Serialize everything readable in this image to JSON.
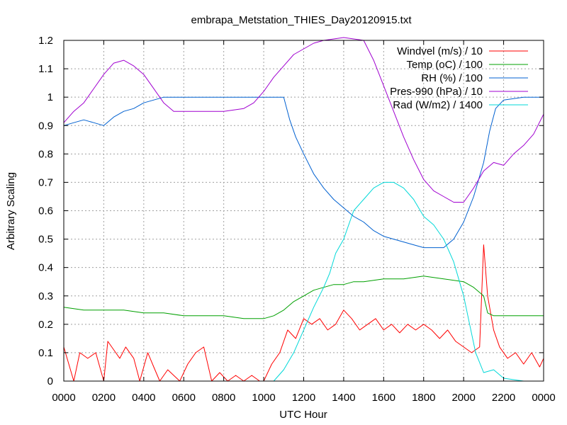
{
  "chart_data": {
    "type": "line",
    "title": "embrapa_Metstation_THIES_Day20120915.txt",
    "xlabel": "UTC Hour",
    "ylabel": "Arbitrary Scaling",
    "xlim": [
      0,
      24
    ],
    "ylim": [
      0,
      1.2
    ],
    "x_ticks": [
      "0000",
      "0200",
      "0400",
      "0600",
      "0800",
      "1000",
      "1200",
      "1400",
      "1600",
      "1800",
      "2000",
      "2200",
      "0000"
    ],
    "y_ticks": [
      "0",
      "0.1",
      "0.2",
      "0.3",
      "0.4",
      "0.5",
      "0.6",
      "0.7",
      "0.8",
      "0.9",
      "1",
      "1.1",
      "1.2"
    ],
    "grid": true,
    "legend_position": "top-right",
    "series": [
      {
        "name": "Windvel (m/s) / 10",
        "color": "#ff0000",
        "x": [
          0,
          0.5,
          0.8,
          1.2,
          1.6,
          2.0,
          2.2,
          2.5,
          2.8,
          3.1,
          3.5,
          3.8,
          4.2,
          4.5,
          4.8,
          5.2,
          5.8,
          6.2,
          6.6,
          7.0,
          7.4,
          7.8,
          8.2,
          8.6,
          9.0,
          9.4,
          9.8,
          10.0,
          10.4,
          10.8,
          11.2,
          11.6,
          12.0,
          12.4,
          12.8,
          13.2,
          13.6,
          14.0,
          14.4,
          14.8,
          15.2,
          15.6,
          16.0,
          16.4,
          16.8,
          17.2,
          17.6,
          18.0,
          18.4,
          18.8,
          19.2,
          19.6,
          20.0,
          20.4,
          20.8,
          21.0,
          21.2,
          21.5,
          21.8,
          22.2,
          22.6,
          23.0,
          23.4,
          23.8,
          24.0
        ],
        "values": [
          0.12,
          0.0,
          0.1,
          0.08,
          0.1,
          0.0,
          0.14,
          0.11,
          0.08,
          0.12,
          0.08,
          0.0,
          0.1,
          0.05,
          0.0,
          0.04,
          0.0,
          0.06,
          0.1,
          0.12,
          0.0,
          0.03,
          0.0,
          0.02,
          0.0,
          0.02,
          0.0,
          0.0,
          0.06,
          0.1,
          0.18,
          0.15,
          0.22,
          0.2,
          0.22,
          0.18,
          0.2,
          0.25,
          0.22,
          0.18,
          0.2,
          0.22,
          0.18,
          0.2,
          0.17,
          0.2,
          0.18,
          0.2,
          0.18,
          0.15,
          0.18,
          0.14,
          0.12,
          0.1,
          0.12,
          0.48,
          0.3,
          0.18,
          0.12,
          0.08,
          0.1,
          0.06,
          0.1,
          0.05,
          0.08
        ]
      },
      {
        "name": "Temp (oC) / 100",
        "color": "#00a000",
        "x": [
          0,
          1,
          2,
          3,
          4,
          5,
          6,
          7,
          8,
          9,
          10,
          10.5,
          11,
          11.5,
          12,
          12.5,
          13,
          13.5,
          14,
          14.5,
          15,
          16,
          17,
          18,
          19,
          20,
          20.5,
          21,
          21.2,
          21.5,
          22,
          23,
          24
        ],
        "values": [
          0.26,
          0.25,
          0.25,
          0.25,
          0.24,
          0.24,
          0.23,
          0.23,
          0.23,
          0.22,
          0.22,
          0.23,
          0.25,
          0.28,
          0.3,
          0.32,
          0.33,
          0.34,
          0.34,
          0.35,
          0.35,
          0.36,
          0.36,
          0.37,
          0.36,
          0.35,
          0.33,
          0.3,
          0.24,
          0.23,
          0.23,
          0.23,
          0.23
        ]
      },
      {
        "name": "RH (%) / 100",
        "color": "#0060d0",
        "x": [
          0,
          0.5,
          1,
          1.5,
          2,
          2.5,
          3,
          3.5,
          4,
          4.5,
          5,
          5.5,
          6,
          7,
          8,
          9,
          10,
          11,
          11.3,
          11.6,
          12,
          12.5,
          13,
          13.5,
          14,
          14.5,
          15,
          15.5,
          16,
          16.5,
          17,
          17.5,
          18,
          18.5,
          19,
          19.5,
          20,
          20.5,
          21,
          21.3,
          21.6,
          22,
          23,
          24
        ],
        "values": [
          0.9,
          0.91,
          0.92,
          0.91,
          0.9,
          0.93,
          0.95,
          0.96,
          0.98,
          0.99,
          1.0,
          1.0,
          1.0,
          1.0,
          1.0,
          1.0,
          1.0,
          1.0,
          0.92,
          0.86,
          0.8,
          0.73,
          0.68,
          0.64,
          0.61,
          0.58,
          0.56,
          0.53,
          0.51,
          0.5,
          0.49,
          0.48,
          0.47,
          0.47,
          0.47,
          0.5,
          0.56,
          0.65,
          0.77,
          0.88,
          0.96,
          0.99,
          1.0,
          1.0
        ]
      },
      {
        "name": "Pres-990 (hPa) / 10",
        "color": "#a000d0",
        "x": [
          0,
          0.5,
          1,
          1.5,
          2,
          2.5,
          3,
          3.5,
          4,
          4.5,
          5,
          5.5,
          6,
          7,
          8,
          9,
          9.5,
          10,
          10.5,
          11,
          11.5,
          12,
          12.5,
          13,
          14,
          15,
          15.5,
          16,
          16.5,
          17,
          17.5,
          18,
          18.5,
          19,
          19.5,
          20,
          20.5,
          21,
          21.5,
          22,
          22.5,
          23,
          23.5,
          24
        ],
        "values": [
          0.91,
          0.95,
          0.98,
          1.03,
          1.08,
          1.12,
          1.13,
          1.11,
          1.08,
          1.03,
          0.98,
          0.95,
          0.95,
          0.95,
          0.95,
          0.96,
          0.98,
          1.02,
          1.07,
          1.11,
          1.15,
          1.17,
          1.19,
          1.2,
          1.21,
          1.2,
          1.13,
          1.04,
          0.95,
          0.86,
          0.78,
          0.71,
          0.67,
          0.65,
          0.63,
          0.63,
          0.68,
          0.74,
          0.77,
          0.76,
          0.8,
          0.83,
          0.87,
          0.94
        ]
      },
      {
        "name": "Rad (W/m2) / 1400",
        "color": "#00d8d8",
        "x": [
          0,
          10.5,
          11,
          11.5,
          12,
          12.5,
          13,
          13.3,
          13.6,
          14,
          14.5,
          15,
          15.5,
          16,
          16.5,
          17,
          17.5,
          18,
          18.5,
          19,
          19.5,
          20,
          20.3,
          20.6,
          21,
          21.5,
          22,
          23,
          24
        ],
        "values": [
          0,
          0,
          0.04,
          0.1,
          0.18,
          0.26,
          0.33,
          0.38,
          0.45,
          0.5,
          0.6,
          0.64,
          0.68,
          0.7,
          0.7,
          0.68,
          0.64,
          0.58,
          0.55,
          0.5,
          0.42,
          0.3,
          0.2,
          0.1,
          0.03,
          0.04,
          0.01,
          0.0,
          0.0
        ]
      }
    ]
  }
}
